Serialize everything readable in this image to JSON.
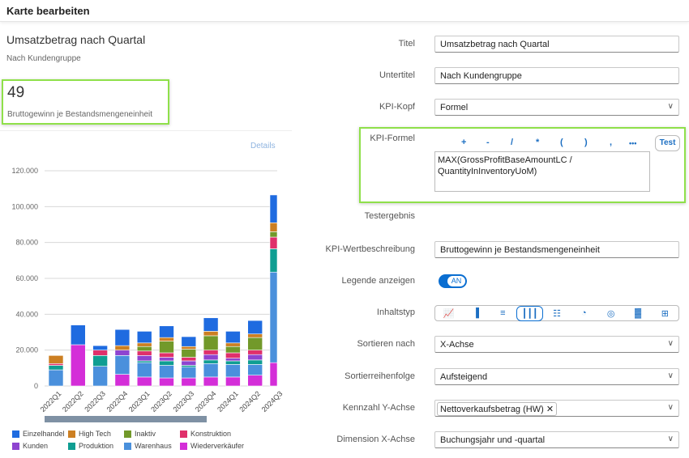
{
  "header": {
    "title": "Karte bearbeiten"
  },
  "card": {
    "title": "Umsatzbetrag nach Quartal",
    "subtitle": "Nach Kundengruppe",
    "kpi_value": "49",
    "kpi_description": "Bruttogewinn je Bestandsmengeneinheit",
    "details_link": "Details"
  },
  "form": {
    "title_label": "Titel",
    "title_value": "Umsatzbetrag nach Quartal",
    "subtitle_label": "Untertitel",
    "subtitle_value": "Nach Kundengruppe",
    "kpi_head_label": "KPI-Kopf",
    "kpi_head_value": "Formel",
    "kpi_formula_label": "KPI-Formel",
    "operators": [
      "+",
      "-",
      "/",
      "*",
      "(",
      ")",
      ",",
      "•••"
    ],
    "test_button": "Test",
    "kpi_formula_value": "MAX(GrossProfitBaseAmountLC / QuantityInInventoryUoM)",
    "test_result_label": "Testergebnis",
    "kpi_desc_label": "KPI-Wertbeschreibung",
    "kpi_desc_value": "Bruttogewinn je Bestandsmengeneinheit",
    "legend_label": "Legende anzeigen",
    "legend_toggle": "AN",
    "content_type_label": "Inhaltstyp",
    "content_types": [
      "line-chart-icon",
      "column-chart-icon",
      "bar-chart-icon",
      "stacked-column-icon",
      "stacked-bar-icon",
      "pie-chart-icon",
      "donut-chart-icon",
      "heatmap-icon",
      "table-icon"
    ],
    "content_type_selected": "stacked-column-icon",
    "sort_by_label": "Sortieren nach",
    "sort_by_value": "X-Achse",
    "sort_order_label": "Sortierreihenfolge",
    "sort_order_value": "Aufsteigend",
    "y_measure_label": "Kennzahl Y-Achse",
    "y_measure_token": "Nettoverkaufsbetrag (HW)",
    "x_dimension_label": "Dimension X-Achse",
    "x_dimension_value": "Buchungsjahr und -quartal"
  },
  "colors": {
    "accent": "#0a6ed1",
    "highlight": "#8fe04a"
  },
  "chart_data": {
    "type": "bar",
    "stacked": true,
    "categories": [
      "2022Q1",
      "2022Q2",
      "2022Q3",
      "2022Q4",
      "2023Q1",
      "2023Q2",
      "2023Q3",
      "2023Q4",
      "2024Q1",
      "2024Q2",
      "2024Q3"
    ],
    "ylim": [
      0,
      120000
    ],
    "yticks": [
      "0",
      "20.000",
      "40.000",
      "60.000",
      "80.000",
      "100.000",
      "120.000"
    ],
    "grid": true,
    "legend": "bottom",
    "series": [
      {
        "name": "Wiederverkäufer",
        "color": "#d42ed8",
        "values": [
          0,
          23000,
          0,
          6500,
          5000,
          4500,
          4500,
          5000,
          5000,
          6000,
          13000
        ]
      },
      {
        "name": "Warenhaus",
        "color": "#4a90dc",
        "values": [
          9000,
          0,
          11000,
          10500,
          8000,
          7000,
          6000,
          7500,
          7000,
          6000,
          50500
        ]
      },
      {
        "name": "Produktion",
        "color": "#0f9e92",
        "values": [
          2500,
          0,
          6000,
          0,
          1000,
          2500,
          1000,
          2000,
          2000,
          2500,
          13000
        ]
      },
      {
        "name": "Kunden",
        "color": "#8e44d0",
        "values": [
          0,
          0,
          0,
          3000,
          3000,
          2000,
          2500,
          3000,
          1500,
          3000,
          0
        ]
      },
      {
        "name": "Konstruktion",
        "color": "#e0306b",
        "values": [
          1000,
          0,
          3000,
          0,
          2500,
          2500,
          2000,
          2500,
          3000,
          2500,
          6500
        ]
      },
      {
        "name": "Inaktiv",
        "color": "#72992a",
        "values": [
          0,
          0,
          0,
          0,
          2500,
          6500,
          4500,
          8000,
          3500,
          7000,
          3000
        ]
      },
      {
        "name": "High Tech",
        "color": "#cc7f22",
        "values": [
          4500,
          0,
          0,
          2500,
          2000,
          2000,
          1500,
          2500,
          2000,
          2000,
          5000
        ]
      },
      {
        "name": "Einzelhandel",
        "color": "#1f6be0",
        "values": [
          0,
          11000,
          2500,
          9000,
          6500,
          6500,
          5500,
          7500,
          6500,
          7500,
          15500
        ]
      }
    ],
    "legend_order": [
      "Einzelhandel",
      "High Tech",
      "Inaktiv",
      "Konstruktion",
      "Kunden",
      "Produktion",
      "Warenhaus",
      "Wiederverkäufer"
    ]
  }
}
